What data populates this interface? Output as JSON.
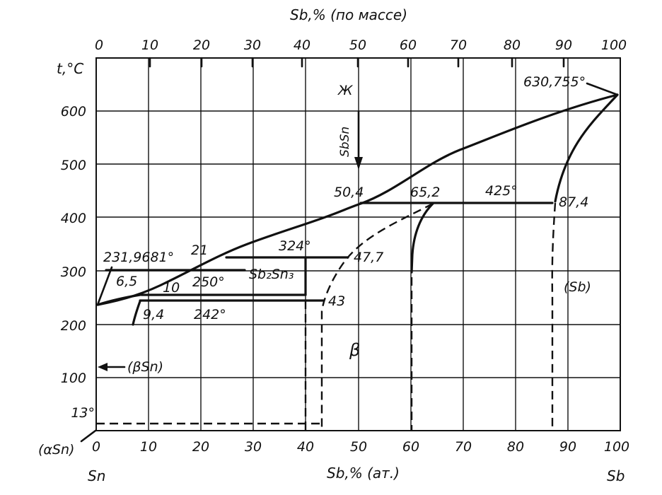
{
  "top_axis": {
    "title": "Sb,% (по массе)",
    "ticks": [
      "0",
      "10",
      "20",
      "30",
      "40",
      "50",
      "60",
      "70",
      "80",
      "90",
      "100"
    ]
  },
  "bottom_axis": {
    "title": "Sb,% (ат.)",
    "ticks": [
      "0",
      "10",
      "20",
      "30",
      "40",
      "50",
      "60",
      "70",
      "80",
      "90",
      "100"
    ],
    "left_element": "Sn",
    "right_element": "Sb"
  },
  "y_axis": {
    "title": "t,°C",
    "ticks": [
      "600",
      "500",
      "400",
      "300",
      "200",
      "100"
    ],
    "extra_tick": "13°"
  },
  "phase_labels": {
    "liquid": "Ж",
    "beta_sn": "(βSn)",
    "alpha_sn": "(αSn)",
    "sb_solid": "(Sb)",
    "beta_phase": "β",
    "compound_sbsn": "SbSn",
    "compound_sb2sn3": "Sb₂Sn₃"
  },
  "point_labels": {
    "sb_melting": "630,755°",
    "sn_melting": "231,9681°",
    "p_6_5": "6,5",
    "p_10": "10",
    "p_250": "250°",
    "p_9_4": "9,4",
    "p_242": "242°",
    "p_21": "21",
    "p_324": "324°",
    "p_47_7": "47,7",
    "p_43": "43",
    "p_50_4": "50,4",
    "p_65_2": "65,2",
    "p_425": "425°",
    "p_87_4": "87,4"
  }
}
